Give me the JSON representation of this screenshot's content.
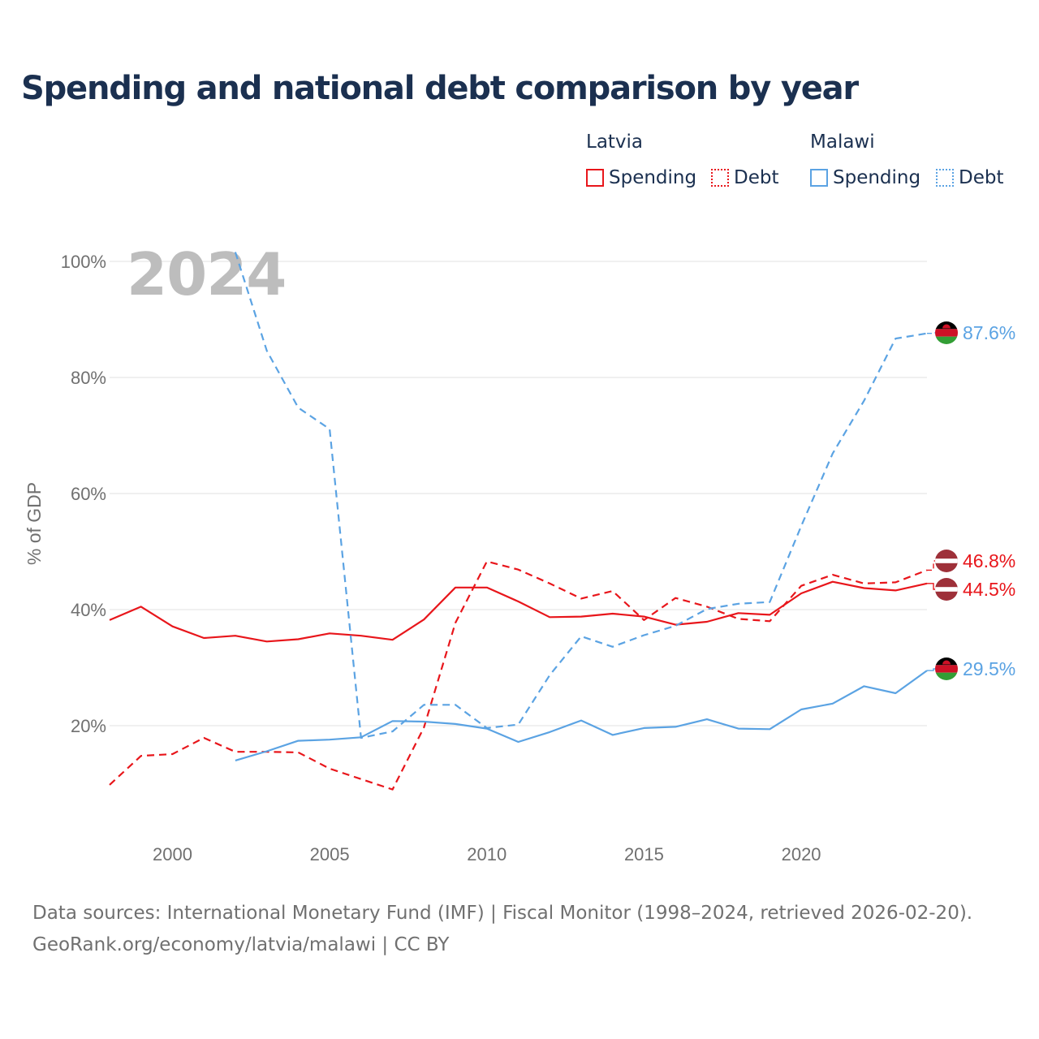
{
  "title": "Spending and national debt comparison by year",
  "legend": {
    "groups": [
      {
        "country": "Latvia",
        "spending_label": "Spending",
        "debt_label": "Debt",
        "color": "#e8161b"
      },
      {
        "country": "Malawi",
        "spending_label": "Spending",
        "debt_label": "Debt",
        "color": "#5ba3e3"
      }
    ]
  },
  "footer": {
    "line1": "Data sources: International Monetary Fund (IMF) | Fiscal Monitor (1998–2024, retrieved 2026-02-20).",
    "line2": "GeoRank.org/economy/latvia/malawi | CC BY"
  },
  "chart_data": {
    "type": "line",
    "year_watermark": "2024",
    "ylabel": "% of GDP",
    "xlim": [
      1998,
      2024
    ],
    "ylim": [
      0,
      100
    ],
    "x_ticks": [
      2000,
      2005,
      2010,
      2015,
      2020
    ],
    "y_ticks": [
      20,
      40,
      60,
      80,
      100
    ],
    "y_tick_labels": [
      "20%",
      "40%",
      "60%",
      "80%",
      "100%"
    ],
    "series": [
      {
        "name": "Latvia Spending",
        "country": "Latvia",
        "metric": "Spending",
        "color": "#e8161b",
        "dash": "solid",
        "x": [
          1998,
          1999,
          2000,
          2001,
          2002,
          2003,
          2004,
          2005,
          2006,
          2007,
          2008,
          2009,
          2010,
          2011,
          2012,
          2013,
          2014,
          2015,
          2016,
          2017,
          2018,
          2019,
          2020,
          2021,
          2022,
          2023,
          2024
        ],
        "y": [
          38.2,
          40.5,
          37.1,
          35.1,
          35.5,
          34.5,
          34.9,
          35.9,
          35.5,
          34.8,
          38.3,
          43.8,
          43.8,
          41.4,
          38.7,
          38.8,
          39.3,
          38.8,
          37.4,
          37.9,
          39.4,
          39.1,
          42.8,
          44.8,
          43.7,
          43.3,
          44.5
        ],
        "end_label": "44.5%"
      },
      {
        "name": "Latvia Debt",
        "country": "Latvia",
        "metric": "Debt",
        "color": "#e8161b",
        "dash": "dashed",
        "x": [
          1998,
          1999,
          2000,
          2001,
          2002,
          2003,
          2004,
          2005,
          2006,
          2007,
          2008,
          2009,
          2010,
          2011,
          2012,
          2013,
          2014,
          2015,
          2016,
          2017,
          2018,
          2019,
          2020,
          2021,
          2022,
          2023,
          2024
        ],
        "y": [
          9.8,
          14.8,
          15.1,
          17.9,
          15.5,
          15.5,
          15.4,
          12.6,
          10.8,
          9.0,
          19.7,
          37.7,
          48.3,
          46.9,
          44.5,
          41.9,
          43.2,
          38.2,
          42.0,
          40.5,
          38.4,
          38.0,
          44.1,
          46.0,
          44.5,
          44.7,
          46.8
        ],
        "end_label": "46.8%"
      },
      {
        "name": "Malawi Spending",
        "country": "Malawi",
        "metric": "Spending",
        "color": "#5ba3e3",
        "dash": "solid",
        "x": [
          2002,
          2003,
          2004,
          2005,
          2006,
          2007,
          2008,
          2009,
          2010,
          2011,
          2012,
          2013,
          2014,
          2015,
          2016,
          2017,
          2018,
          2019,
          2020,
          2021,
          2022,
          2023,
          2024
        ],
        "y": [
          14.0,
          15.6,
          17.4,
          17.6,
          18.0,
          20.8,
          20.7,
          20.3,
          19.5,
          17.2,
          18.9,
          20.9,
          18.4,
          19.6,
          19.8,
          21.1,
          19.5,
          19.4,
          22.8,
          23.8,
          26.8,
          25.6,
          29.5
        ],
        "end_label": "29.5%"
      },
      {
        "name": "Malawi Debt",
        "country": "Malawi",
        "metric": "Debt",
        "color": "#5ba3e3",
        "dash": "dashed",
        "x": [
          2002,
          2003,
          2004,
          2005,
          2006,
          2007,
          2008,
          2009,
          2010,
          2011,
          2012,
          2013,
          2014,
          2015,
          2016,
          2017,
          2018,
          2019,
          2020,
          2021,
          2022,
          2023,
          2024
        ],
        "y": [
          101.6,
          84.6,
          74.8,
          71.1,
          17.9,
          19.0,
          23.6,
          23.6,
          19.6,
          20.2,
          28.7,
          35.4,
          33.6,
          35.6,
          37.2,
          40.1,
          41.0,
          41.3,
          54.4,
          66.9,
          76.0,
          86.7,
          87.6
        ],
        "end_label": "87.6%"
      }
    ]
  }
}
